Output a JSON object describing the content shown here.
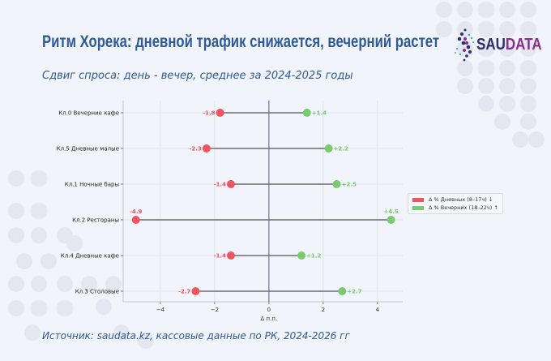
{
  "header": {
    "title": "Ритм Хорека: дневной трафик снижается, вечерний растет",
    "subtitle": "Сдвиг спроса: день - вечер, среднее за 2024-2025 годы"
  },
  "logo": {
    "text_part1": "SAU",
    "text_part2": "DATA"
  },
  "footer": {
    "source": "Источник: saudata.kz, кассовые данные по РК, 2024-2026 гг"
  },
  "colors": {
    "day": "#f0545f",
    "evening": "#78cc6e",
    "accent": "#2e5a96"
  },
  "chart_data": {
    "type": "dumbbell",
    "categories": [
      "Кл.0 Вечерние кафе",
      "Кл.5 Дневные малые",
      "Кл.1 Ночные бары",
      "Кл.2 Рестораны",
      "Кл.4 Дневные кафе",
      "Кл.3 Столовые"
    ],
    "series": [
      {
        "name": "Δ % Дневных (8–17ч) ↓",
        "values": [
          -1.8,
          -2.3,
          -1.4,
          -4.9,
          -1.4,
          -2.7
        ],
        "labels": [
          "-1.8",
          "-2.3",
          "-1.4",
          "-4.9",
          "-1.4",
          "-2.7"
        ]
      },
      {
        "name": "Δ % Вечерних (18–22ч) ↑",
        "values": [
          1.4,
          2.2,
          2.5,
          4.5,
          1.2,
          2.7
        ],
        "labels": [
          "+1.4",
          "+2.2",
          "+2.5",
          "+4.5",
          "+1.2",
          "+2.7"
        ]
      }
    ],
    "xlabel": "Δ п.п.",
    "xticks": [
      "−4",
      "−2",
      "0",
      "2",
      "4"
    ],
    "xtick_values": [
      -4,
      -2,
      0,
      2,
      4
    ],
    "xlim": [
      -5.37,
      4.93
    ],
    "grid": true,
    "legend_position": "right"
  }
}
